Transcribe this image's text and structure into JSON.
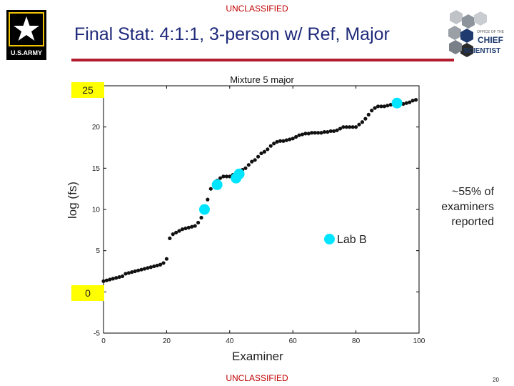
{
  "header": {
    "classification_top": "UNCLASSIFIED",
    "title": "Final Stat:  4:1:1, 3-person w/ Ref, Major",
    "classification_bottom": "UNCLASSIFIED",
    "page_number": "20"
  },
  "logos": {
    "army_text": "U.S.ARMY",
    "cs_office": "OFFICE OF THE",
    "cs_chief": "CHIEF",
    "cs_scientist": "SCIENTIST"
  },
  "colors": {
    "title": "#1f2a7a",
    "rule": "#b01c2e",
    "highlight": "#ffff00",
    "lab_point": "#00e5ff",
    "point": "#111111"
  },
  "overlay": {
    "box_top": "25",
    "box_bottom": "0",
    "annotation_lines": [
      "~55% of",
      "examiners",
      "reported"
    ],
    "legend_label": "Lab B"
  },
  "chart_data": {
    "type": "scatter",
    "title": "Mixture 5 major",
    "xlabel": "Examiner",
    "ylabel": "log (fs)",
    "xlim": [
      0,
      100
    ],
    "ylim": [
      -5,
      25
    ],
    "xticks": [
      0,
      20,
      40,
      60,
      80,
      100
    ],
    "yticks": [
      -5,
      0,
      5,
      10,
      15,
      20,
      25
    ],
    "grid": false,
    "series": [
      {
        "name": "",
        "color": "#111111",
        "x": [
          0,
          1,
          2,
          3,
          4,
          5,
          6,
          7,
          8,
          9,
          10,
          11,
          12,
          13,
          14,
          15,
          16,
          17,
          18,
          19,
          20,
          21,
          22,
          23,
          24,
          25,
          26,
          27,
          28,
          29,
          30,
          31,
          32,
          33,
          34,
          35,
          36,
          37,
          38,
          39,
          40,
          41,
          42,
          43,
          44,
          45,
          46,
          47,
          48,
          49,
          50,
          51,
          52,
          53,
          54,
          55,
          56,
          57,
          58,
          59,
          60,
          61,
          62,
          63,
          64,
          65,
          66,
          67,
          68,
          69,
          70,
          71,
          72,
          73,
          74,
          75,
          76,
          77,
          78,
          79,
          80,
          81,
          82,
          83,
          84,
          85,
          86,
          87,
          88,
          89,
          90,
          91,
          92,
          93,
          94,
          95,
          96,
          97,
          98,
          99
        ],
        "y": [
          1.3,
          1.4,
          1.5,
          1.6,
          1.7,
          1.8,
          1.9,
          2.2,
          2.3,
          2.4,
          2.5,
          2.6,
          2.7,
          2.8,
          2.9,
          3.0,
          3.1,
          3.2,
          3.3,
          3.5,
          4.0,
          6.5,
          7.0,
          7.2,
          7.4,
          7.6,
          7.7,
          7.8,
          7.9,
          8.0,
          8.4,
          9.0,
          10.0,
          11.2,
          12.5,
          13.0,
          13.5,
          13.8,
          14.0,
          14.0,
          14.0,
          14.2,
          14.4,
          14.6,
          14.8,
          15.0,
          15.4,
          15.8,
          16.0,
          16.4,
          16.8,
          17.0,
          17.3,
          17.7,
          18.0,
          18.2,
          18.3,
          18.3,
          18.4,
          18.5,
          18.6,
          18.8,
          19.0,
          19.1,
          19.2,
          19.2,
          19.3,
          19.3,
          19.3,
          19.3,
          19.4,
          19.4,
          19.5,
          19.5,
          19.6,
          19.8,
          20.0,
          20.0,
          20.0,
          20.0,
          20.0,
          20.3,
          20.6,
          21.0,
          21.5,
          22.0,
          22.3,
          22.5,
          22.5,
          22.5,
          22.6,
          22.7,
          22.7,
          22.8,
          22.8,
          22.8,
          22.9,
          23.0,
          23.2,
          23.3
        ]
      },
      {
        "name": "Lab B",
        "color": "#00e5ff",
        "x": [
          32,
          36,
          42,
          43,
          93
        ],
        "y": [
          10.0,
          13.0,
          13.8,
          14.3,
          22.9
        ]
      }
    ]
  }
}
